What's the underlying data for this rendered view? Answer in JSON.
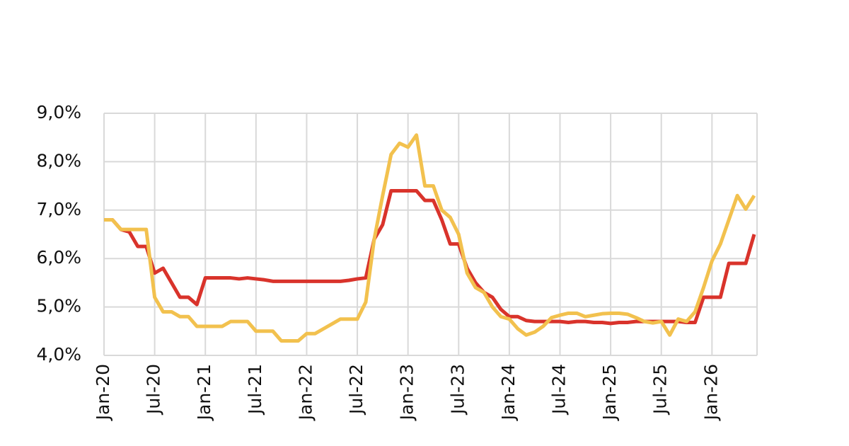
{
  "chart_data": {
    "type": "line",
    "categories": [
      "Jan-20",
      null,
      null,
      null,
      null,
      null,
      "Jul-20",
      null,
      null,
      null,
      null,
      null,
      "Jan-21",
      null,
      null,
      null,
      null,
      null,
      "Jul-21",
      null,
      null,
      null,
      null,
      null,
      "Jan-22",
      null,
      null,
      null,
      null,
      null,
      "Jul-22",
      null,
      null,
      null,
      null,
      null,
      "Jan-23",
      null,
      null,
      null,
      null,
      null,
      "Jul-23",
      null,
      null,
      null,
      null,
      null,
      "Jan-24",
      null,
      null,
      null,
      null,
      null,
      "Jul-24",
      null,
      null,
      null,
      null,
      null,
      "Jan-25",
      null,
      null,
      null,
      null,
      null,
      "Jul-25",
      null,
      null,
      null,
      null,
      null,
      "Jan-26",
      null,
      null,
      null,
      null,
      null
    ],
    "series": [
      {
        "color": "#d9332b",
        "values": [
          6.8,
          6.8,
          6.6,
          6.55,
          6.25,
          6.25,
          5.7,
          5.8,
          5.5,
          5.2,
          5.2,
          5.05,
          5.6,
          5.6,
          5.6,
          5.6,
          5.58,
          5.6,
          5.58,
          5.56,
          5.53,
          5.53,
          5.53,
          5.53,
          5.53,
          5.53,
          5.53,
          5.53,
          5.53,
          5.55,
          5.58,
          5.6,
          6.4,
          6.7,
          7.4,
          7.4,
          7.4,
          7.4,
          7.2,
          7.2,
          6.8,
          6.3,
          6.3,
          5.8,
          5.5,
          5.3,
          5.2,
          4.95,
          4.8,
          4.8,
          4.72,
          4.7,
          4.7,
          4.7,
          4.7,
          4.68,
          4.7,
          4.7,
          4.68,
          4.68,
          4.66,
          4.68,
          4.68,
          4.7,
          4.7,
          4.7,
          4.7,
          4.7,
          4.7,
          4.68,
          4.68,
          5.2,
          5.2,
          5.2,
          5.9,
          5.9,
          5.9,
          6.5
        ]
      },
      {
        "color": "#f2c14e",
        "values": [
          6.8,
          6.8,
          6.6,
          6.6,
          6.6,
          6.6,
          5.2,
          4.9,
          4.9,
          4.8,
          4.8,
          4.6,
          4.6,
          4.6,
          4.6,
          4.7,
          4.7,
          4.7,
          4.5,
          4.5,
          4.5,
          4.3,
          4.3,
          4.3,
          4.45,
          4.45,
          4.55,
          4.65,
          4.75,
          4.75,
          4.75,
          5.1,
          6.4,
          7.3,
          8.15,
          8.38,
          8.3,
          8.55,
          7.5,
          7.5,
          7.0,
          6.85,
          6.5,
          5.7,
          5.4,
          5.3,
          5.0,
          4.8,
          4.75,
          4.55,
          4.42,
          4.48,
          4.6,
          4.78,
          4.83,
          4.87,
          4.87,
          4.8,
          4.83,
          4.86,
          4.87,
          4.87,
          4.85,
          4.78,
          4.7,
          4.67,
          4.7,
          4.42,
          4.75,
          4.7,
          4.9,
          5.4,
          5.95,
          6.3,
          6.8,
          7.3,
          7.02,
          7.3
        ]
      }
    ],
    "ylim": [
      4,
      9
    ],
    "yticks": [
      {
        "value": 4,
        "label": "4,0%"
      },
      {
        "value": 5,
        "label": "5,0%"
      },
      {
        "value": 6,
        "label": "6,0%"
      },
      {
        "value": 7,
        "label": "7,0%"
      },
      {
        "value": 8,
        "label": "8,0%"
      },
      {
        "value": 9,
        "label": "9,0%"
      }
    ],
    "grid": true
  }
}
